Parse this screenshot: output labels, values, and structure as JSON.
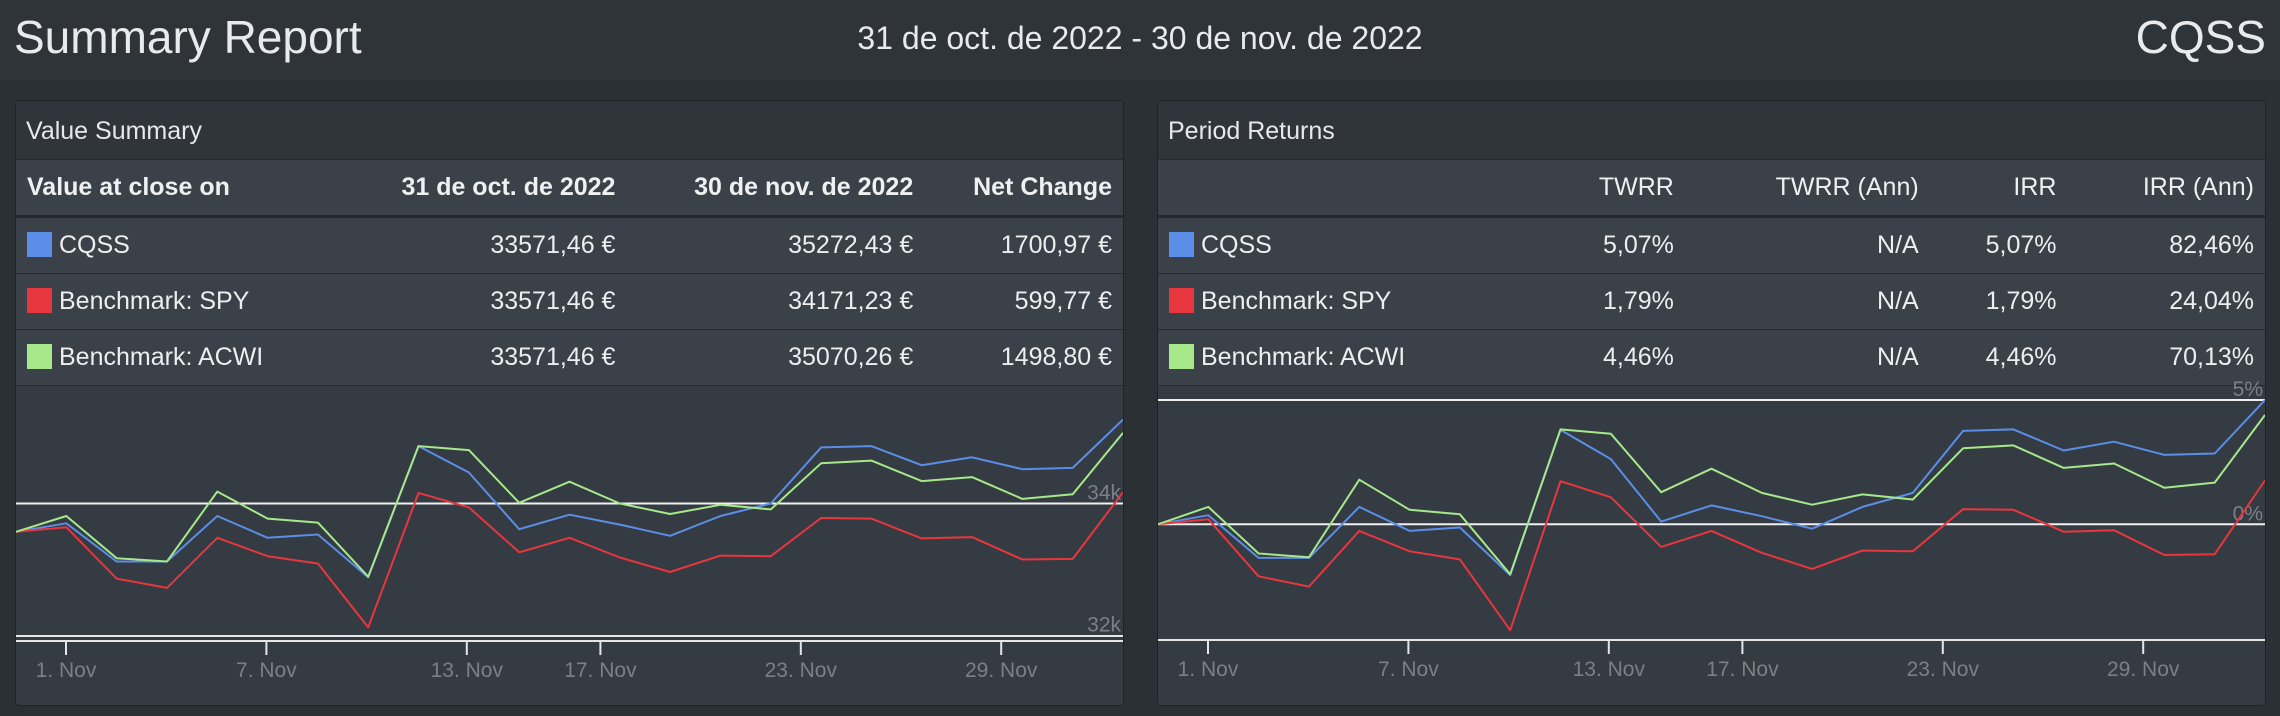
{
  "header": {
    "title": "Summary Report",
    "date_range": "31 de oct. de 2022 - 30 de nov. de 2022",
    "account": "CQSS"
  },
  "value_summary": {
    "title": "Value Summary",
    "columns": [
      "Value at close on",
      "31 de oct. de 2022",
      "30 de nov. de 2022",
      "Net Change"
    ],
    "rows": [
      {
        "name": "CQSS",
        "color": "#5b8ee6",
        "start": "33571,46 €",
        "end": "35272,43 €",
        "change": "1700,97 €"
      },
      {
        "name": "Benchmark: SPY",
        "color": "#e8363e",
        "start": "33571,46 €",
        "end": "34171,23 €",
        "change": "599,77 €"
      },
      {
        "name": "Benchmark: ACWI",
        "color": "#a6e88a",
        "start": "33571,46 €",
        "end": "35070,26 €",
        "change": "1498,80 €"
      }
    ]
  },
  "period_returns": {
    "title": "Period Returns",
    "columns": [
      "",
      "TWRR",
      "TWRR (Ann)",
      "IRR",
      "IRR (Ann)"
    ],
    "rows": [
      {
        "name": "CQSS",
        "color": "#5b8ee6",
        "twrr": "5,07%",
        "twrr_ann": "N/A",
        "irr": "5,07%",
        "irr_ann": "82,46%"
      },
      {
        "name": "Benchmark: SPY",
        "color": "#e8363e",
        "twrr": "1,79%",
        "twrr_ann": "N/A",
        "irr": "1,79%",
        "irr_ann": "24,04%"
      },
      {
        "name": "Benchmark: ACWI",
        "color": "#a6e88a",
        "twrr": "4,46%",
        "twrr_ann": "N/A",
        "irr": "4,46%",
        "irr_ann": "70,13%"
      }
    ]
  },
  "chart_data": [
    {
      "type": "line",
      "x_ticks": [
        "1. Nov",
        "7. Nov",
        "13. Nov",
        "17. Nov",
        "23. Nov",
        "29. Nov"
      ],
      "x_tick_index": [
        1,
        7,
        13,
        17,
        23,
        29
      ],
      "y_ticks": [
        {
          "label": "34k",
          "value": 34000
        },
        {
          "label": "32k",
          "value": 32000
        }
      ],
      "ylim": [
        31990,
        35600
      ],
      "series": [
        {
          "name": "CQSS",
          "color": "#5b8ee6",
          "values": [
            33571,
            33700,
            33120,
            33120,
            33810,
            33480,
            33530,
            32880,
            34870,
            34470,
            33610,
            33830,
            33680,
            33510,
            33810,
            34000,
            34850,
            34870,
            34580,
            34700,
            34520,
            34540,
            35272
          ]
        },
        {
          "name": "Benchmark: SPY",
          "color": "#e8363e",
          "values": [
            33571,
            33640,
            32860,
            32720,
            33480,
            33200,
            33090,
            32120,
            34160,
            33940,
            33260,
            33480,
            33180,
            32960,
            33210,
            33200,
            33780,
            33770,
            33470,
            33490,
            33150,
            33160,
            34171
          ]
        },
        {
          "name": "Benchmark: ACWI",
          "color": "#a6e88a",
          "values": [
            33571,
            33810,
            33170,
            33120,
            34180,
            33770,
            33710,
            32890,
            34870,
            34810,
            34010,
            34330,
            34000,
            33840,
            33980,
            33910,
            34610,
            34650,
            34340,
            34400,
            34070,
            34140,
            35070
          ]
        }
      ]
    },
    {
      "type": "line",
      "x_ticks": [
        "1. Nov",
        "7. Nov",
        "13. Nov",
        "17. Nov",
        "23. Nov",
        "29. Nov"
      ],
      "x_tick_index": [
        1,
        7,
        13,
        17,
        23,
        29
      ],
      "y_ticks": [
        {
          "label": "5%",
          "value": 5.07
        },
        {
          "label": "0%",
          "value": 0
        }
      ],
      "ylim": [
        -4.8,
        5.07
      ],
      "series": [
        {
          "name": "CQSS",
          "color": "#5b8ee6",
          "values": [
            0,
            0.37,
            -1.37,
            -1.37,
            0.71,
            -0.27,
            -0.13,
            -2.07,
            3.85,
            2.66,
            0.11,
            0.77,
            0.33,
            -0.18,
            0.71,
            1.28,
            3.81,
            3.87,
            3.01,
            3.37,
            2.83,
            2.89,
            5.07
          ]
        },
        {
          "name": "Benchmark: SPY",
          "color": "#e8363e",
          "values": [
            0,
            0.21,
            -2.12,
            -2.54,
            -0.27,
            -1.1,
            -1.43,
            -4.32,
            1.76,
            1.1,
            -0.92,
            -0.27,
            -1.16,
            -1.82,
            -1.07,
            -1.1,
            0.62,
            0.59,
            -0.3,
            -0.24,
            -1.25,
            -1.22,
            1.79
          ]
        },
        {
          "name": "Benchmark: ACWI",
          "color": "#a6e88a",
          "values": [
            0,
            0.71,
            -1.19,
            -1.34,
            1.82,
            0.59,
            0.41,
            -2.04,
            3.87,
            3.69,
            1.31,
            2.27,
            1.28,
            0.8,
            1.22,
            1.01,
            3.1,
            3.22,
            2.3,
            2.48,
            1.49,
            1.7,
            4.46
          ]
        }
      ]
    }
  ]
}
